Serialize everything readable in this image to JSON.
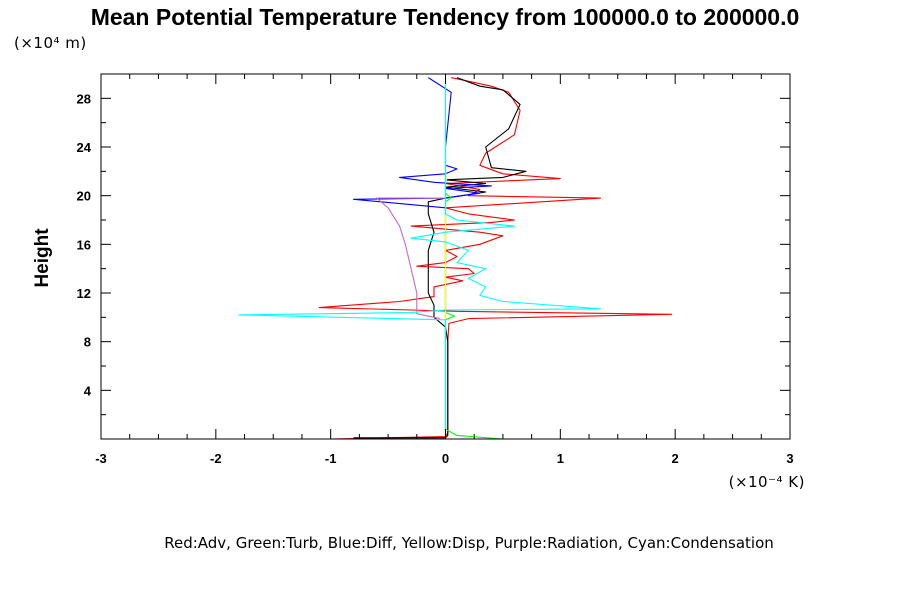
{
  "chart_data": {
    "type": "line",
    "title": "Mean Potential Temperature Tendency from 100000.0 to 200000.0",
    "ylabel": "Height",
    "y_unit_label": "(×10⁴ m)",
    "x_unit_label": "(×10⁻⁴ K)",
    "xlim": [
      -3,
      3
    ],
    "ylim": [
      0,
      30
    ],
    "x_ticks": [
      -3,
      -2,
      -1,
      0,
      1,
      2,
      3
    ],
    "x_tick_labels": [
      "-3",
      "-2",
      "-1",
      "0",
      "1",
      "2",
      "3"
    ],
    "y_ticks": [
      4,
      8,
      12,
      16,
      20,
      24,
      28
    ],
    "y_tick_labels": [
      "4",
      "8",
      "12",
      "16",
      "20",
      "24",
      "28"
    ],
    "grid": false,
    "legend_text": "Red:Adv, Green:Turb, Blue:Diff, Yellow:Disp, Purple:Radiation, Cyan:Condensation",
    "legend_placement": "bottom",
    "series": [
      {
        "color": "#ff0000",
        "points": [
          [
            -1.0,
            0.0
          ],
          [
            -0.5,
            0.1
          ],
          [
            0.0,
            0.2
          ],
          [
            0.02,
            0.5
          ],
          [
            0.02,
            8.0
          ],
          [
            0.03,
            9.5
          ],
          [
            0.2,
            9.9
          ],
          [
            1.97,
            10.25
          ],
          [
            0.1,
            10.5
          ],
          [
            -0.3,
            10.6
          ],
          [
            -1.1,
            10.8
          ],
          [
            -0.4,
            11.3
          ],
          [
            -0.1,
            11.7
          ],
          [
            -0.1,
            12.5
          ],
          [
            0.15,
            13.0
          ],
          [
            0.0,
            13.3
          ],
          [
            0.25,
            13.6
          ],
          [
            0.2,
            14.0
          ],
          [
            -0.25,
            14.2
          ],
          [
            0.0,
            14.5
          ],
          [
            0.1,
            15.0
          ],
          [
            0.0,
            15.5
          ],
          [
            0.3,
            16.0
          ],
          [
            0.5,
            16.7
          ],
          [
            0.3,
            17.0
          ],
          [
            -0.3,
            17.5
          ],
          [
            0.4,
            17.8
          ],
          [
            0.6,
            18.0
          ],
          [
            0.2,
            18.5
          ],
          [
            0.0,
            19.0
          ],
          [
            1.35,
            19.8
          ],
          [
            0.2,
            20.0
          ],
          [
            0.3,
            20.5
          ],
          [
            0.0,
            21.0
          ],
          [
            1.0,
            21.4
          ],
          [
            0.5,
            21.8
          ],
          [
            0.3,
            22.5
          ],
          [
            0.35,
            23.5
          ],
          [
            0.6,
            25.0
          ],
          [
            0.65,
            27.0
          ],
          [
            0.55,
            28.5
          ],
          [
            0.4,
            29.0
          ],
          [
            0.05,
            29.7
          ]
        ]
      },
      {
        "color": "#000000",
        "points": [
          [
            -0.8,
            0.1
          ],
          [
            0.0,
            0.1
          ],
          [
            0.02,
            0.3
          ],
          [
            0.02,
            8.0
          ],
          [
            0.0,
            9.2
          ],
          [
            -0.1,
            10.0
          ],
          [
            -0.1,
            11.0
          ],
          [
            -0.15,
            12.0
          ],
          [
            -0.15,
            14.0
          ],
          [
            -0.15,
            15.5
          ],
          [
            -0.1,
            17.0
          ],
          [
            -0.15,
            18.5
          ],
          [
            -0.15,
            19.5
          ],
          [
            0.0,
            19.8
          ],
          [
            0.35,
            20.3
          ],
          [
            0.0,
            20.7
          ],
          [
            0.35,
            21.0
          ],
          [
            0.0,
            21.3
          ],
          [
            0.5,
            21.5
          ],
          [
            0.7,
            22.0
          ],
          [
            0.4,
            22.3
          ],
          [
            0.35,
            24.0
          ],
          [
            0.55,
            25.5
          ],
          [
            0.65,
            27.5
          ],
          [
            0.5,
            28.7
          ],
          [
            0.3,
            29.0
          ],
          [
            0.1,
            29.7
          ]
        ]
      },
      {
        "color": "#0000ff",
        "points": [
          [
            0.0,
            0.0
          ],
          [
            0.0,
            19.0
          ],
          [
            -0.8,
            19.7
          ],
          [
            0.0,
            19.8
          ],
          [
            0.3,
            20.2
          ],
          [
            0.0,
            20.6
          ],
          [
            0.4,
            20.8
          ],
          [
            -0.1,
            21.1
          ],
          [
            -0.4,
            21.5
          ],
          [
            0.0,
            21.8
          ],
          [
            0.1,
            22.2
          ],
          [
            0.0,
            22.5
          ],
          [
            0.0,
            24.0
          ],
          [
            0.05,
            28.5
          ],
          [
            -0.15,
            29.7
          ]
        ]
      },
      {
        "color": "#00ff00",
        "points": [
          [
            0.5,
            0.0
          ],
          [
            0.1,
            0.3
          ],
          [
            0.0,
            0.8
          ],
          [
            0.0,
            9.8
          ],
          [
            0.08,
            10.1
          ],
          [
            0.0,
            10.4
          ],
          [
            0.0,
            19.5
          ],
          [
            0.05,
            19.8
          ],
          [
            0.0,
            20.2
          ],
          [
            0.0,
            21.0
          ]
        ]
      },
      {
        "color": "#ffff00",
        "points": [
          [
            0.0,
            0.0
          ],
          [
            0.0,
            21.0
          ],
          [
            0.01,
            21.4
          ],
          [
            0.0,
            22.0
          ],
          [
            0.0,
            29.6
          ]
        ]
      },
      {
        "color": "#cc66cc",
        "points": [
          [
            -0.05,
            9.9
          ],
          [
            -0.25,
            10.3
          ],
          [
            -0.25,
            12.0
          ],
          [
            -0.3,
            14.0
          ],
          [
            -0.35,
            16.0
          ],
          [
            -0.4,
            17.5
          ],
          [
            -0.5,
            19.0
          ],
          [
            -0.6,
            19.8
          ],
          [
            0.0,
            19.8
          ]
        ]
      },
      {
        "color": "#00ffff",
        "points": [
          [
            0.0,
            0.0
          ],
          [
            0.0,
            9.8
          ],
          [
            -1.8,
            10.2
          ],
          [
            -0.3,
            10.4
          ],
          [
            0.0,
            10.6
          ],
          [
            1.35,
            10.7
          ],
          [
            0.5,
            11.3
          ],
          [
            0.3,
            11.8
          ],
          [
            0.35,
            12.5
          ],
          [
            0.2,
            13.2
          ],
          [
            0.35,
            14.0
          ],
          [
            0.1,
            14.5
          ],
          [
            0.2,
            15.5
          ],
          [
            0.0,
            16.2
          ],
          [
            -0.3,
            16.5
          ],
          [
            0.0,
            17.0
          ],
          [
            0.6,
            17.5
          ],
          [
            0.1,
            18.0
          ],
          [
            0.0,
            18.5
          ],
          [
            0.0,
            20.0
          ],
          [
            0.0,
            25.0
          ],
          [
            0.0,
            29.7
          ]
        ]
      }
    ]
  }
}
